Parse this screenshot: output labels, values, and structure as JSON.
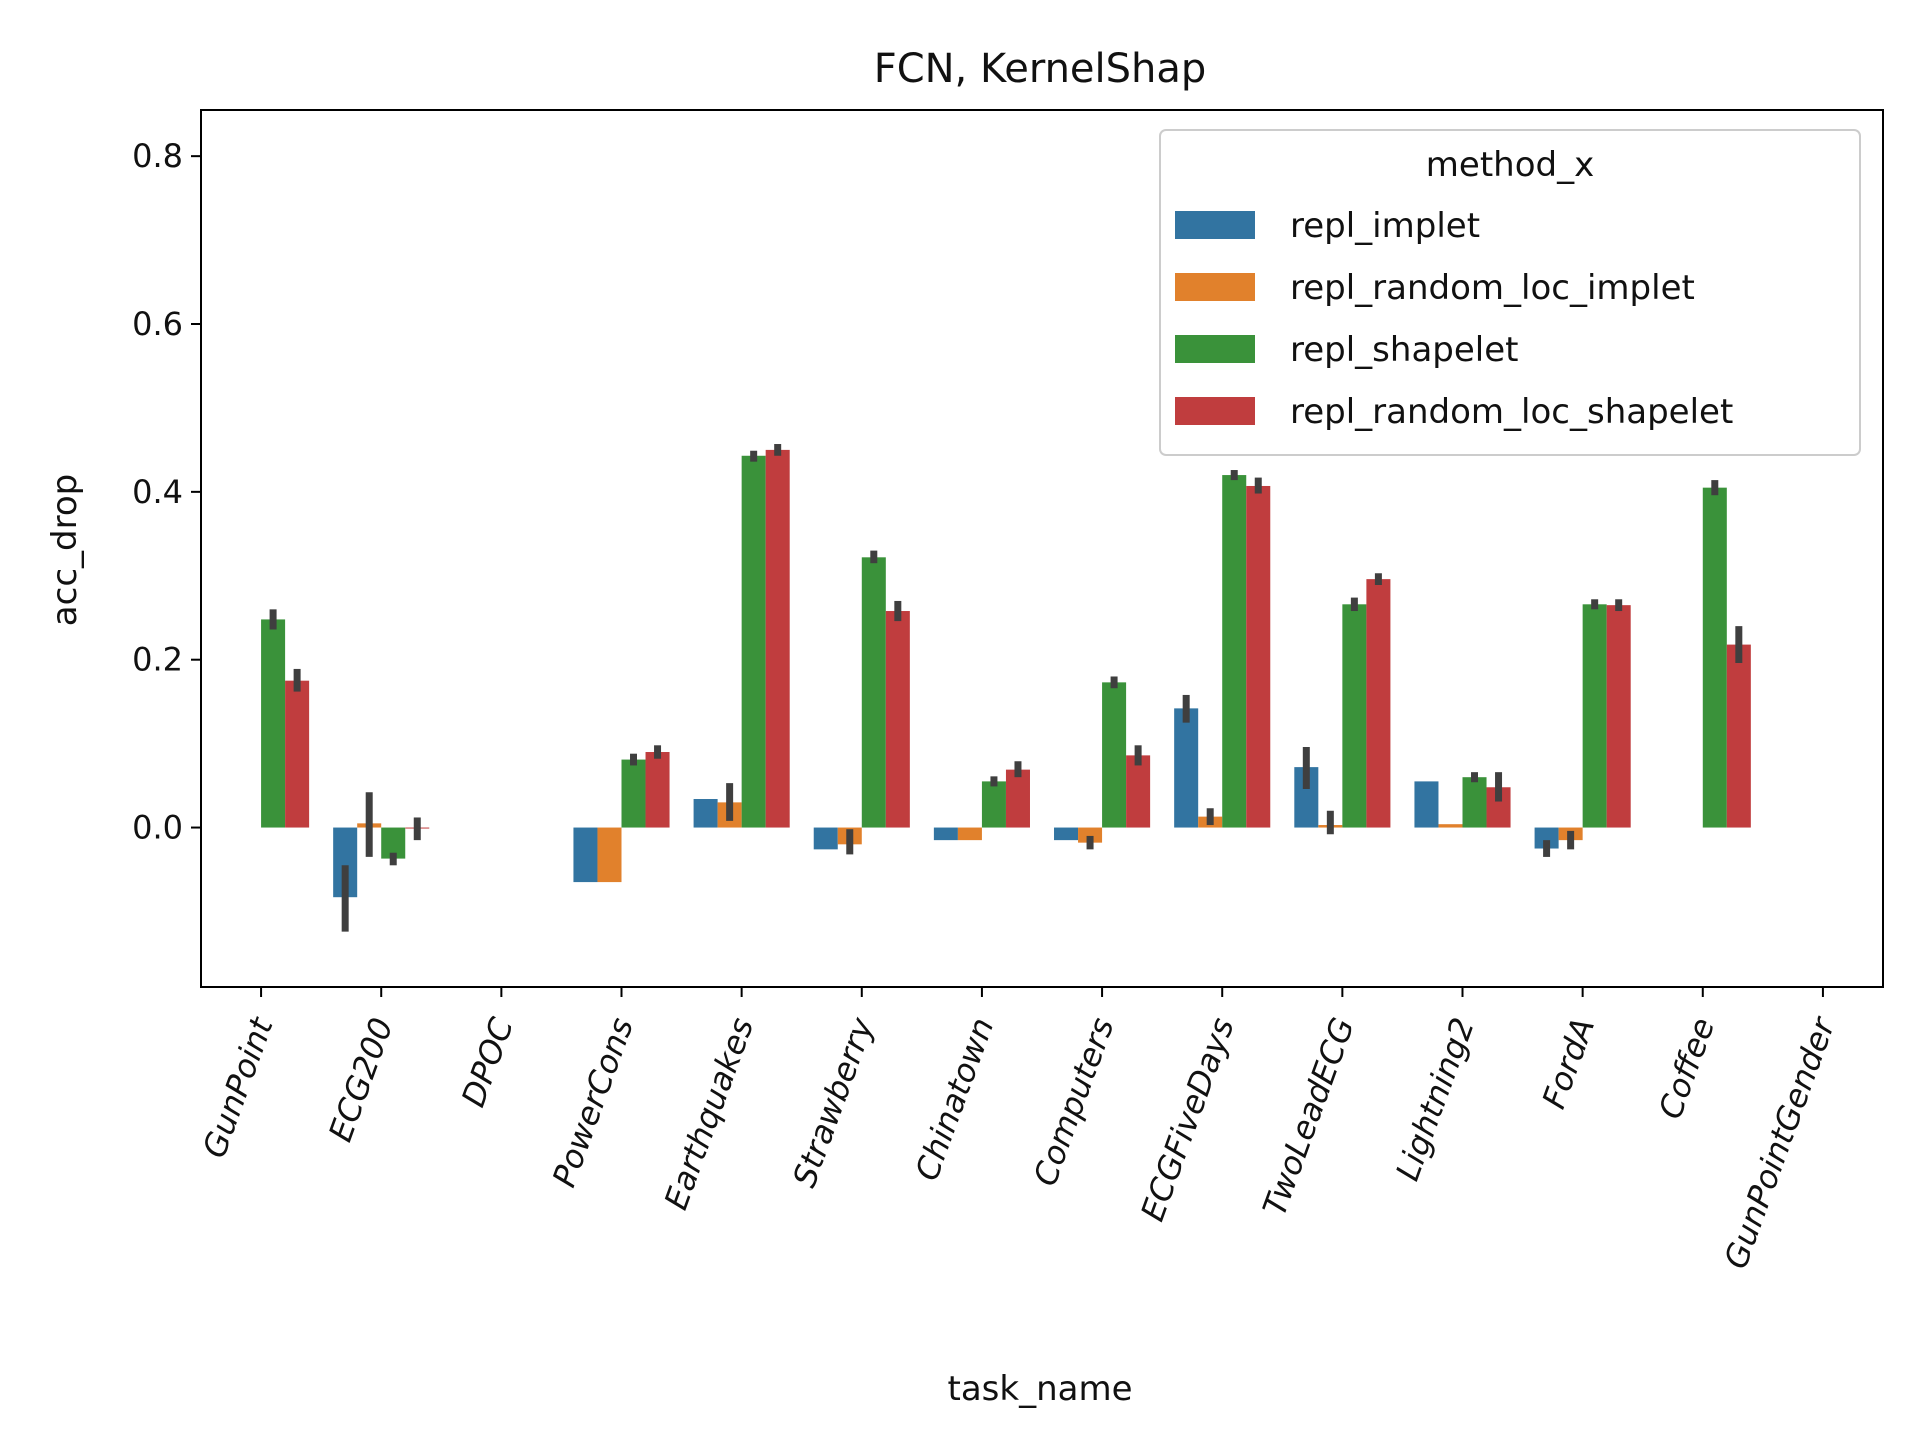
{
  "chart_data": {
    "type": "bar",
    "title": "FCN, KernelShap",
    "xlabel": "task_name",
    "ylabel": "acc_drop",
    "ylim": [
      -0.19,
      0.855
    ],
    "yticks": [
      0.0,
      0.2,
      0.4,
      0.6,
      0.8
    ],
    "ytick_labels": [
      "0.0",
      "0.2",
      "0.4",
      "0.6",
      "0.8"
    ],
    "grid": false,
    "legend": {
      "title": "method_x",
      "position": "top-right"
    },
    "categories": [
      "GunPoint",
      "ECG200",
      "DPOC",
      "PowerCons",
      "Earthquakes",
      "Strawberry",
      "Chinatown",
      "Computers",
      "ECGFiveDays",
      "TwoLeadECG",
      "Lightning2",
      "FordA",
      "Coffee",
      "GunPointGender"
    ],
    "series": [
      {
        "name": "repl_implet",
        "color": "#3274a1",
        "values": [
          null,
          -0.083,
          null,
          -0.065,
          0.034,
          -0.026,
          -0.015,
          -0.015,
          0.142,
          0.072,
          0.055,
          -0.025,
          null,
          null
        ],
        "errors": [
          null,
          [
            -0.124,
            -0.045
          ],
          null,
          null,
          [
            0.034,
            0.034
          ],
          null,
          null,
          null,
          [
            0.125,
            0.158
          ],
          [
            0.046,
            0.096
          ],
          null,
          [
            -0.035,
            -0.015
          ],
          null,
          null
        ]
      },
      {
        "name": "repl_random_loc_implet",
        "color": "#e1812c",
        "values": [
          null,
          0.005,
          null,
          -0.065,
          0.03,
          -0.02,
          -0.015,
          -0.018,
          0.013,
          0.003,
          0.004,
          -0.015,
          null,
          null
        ],
        "errors": [
          null,
          [
            -0.035,
            0.042
          ],
          null,
          null,
          [
            0.008,
            0.053
          ],
          [
            -0.032,
            -0.002
          ],
          null,
          [
            -0.026,
            -0.01
          ],
          [
            0.003,
            0.023
          ],
          [
            -0.008,
            0.02
          ],
          null,
          [
            -0.026,
            -0.004
          ],
          null,
          null
        ]
      },
      {
        "name": "repl_shapelet",
        "color": "#3a923a",
        "values": [
          0.248,
          -0.037,
          null,
          0.081,
          0.443,
          0.322,
          0.055,
          0.173,
          0.42,
          0.266,
          0.06,
          0.266,
          0.405,
          null
        ],
        "errors": [
          [
            0.236,
            0.26
          ],
          [
            -0.045,
            -0.03
          ],
          null,
          [
            0.074,
            0.088
          ],
          [
            0.436,
            0.449
          ],
          [
            0.315,
            0.33
          ],
          [
            0.049,
            0.061
          ],
          [
            0.166,
            0.18
          ],
          [
            0.414,
            0.426
          ],
          [
            0.258,
            0.274
          ],
          [
            0.054,
            0.066
          ],
          [
            0.26,
            0.272
          ],
          [
            0.396,
            0.414
          ],
          null
        ]
      },
      {
        "name": "repl_random_loc_shapelet",
        "color": "#c03d3e",
        "values": [
          0.175,
          -0.001,
          null,
          0.09,
          0.45,
          0.258,
          0.069,
          0.086,
          0.407,
          0.296,
          0.048,
          0.265,
          0.218,
          null
        ],
        "errors": [
          [
            0.162,
            0.189
          ],
          [
            -0.015,
            0.012
          ],
          null,
          [
            0.082,
            0.098
          ],
          [
            0.443,
            0.457
          ],
          [
            0.246,
            0.27
          ],
          [
            0.06,
            0.079
          ],
          [
            0.074,
            0.098
          ],
          [
            0.398,
            0.417
          ],
          [
            0.289,
            0.303
          ],
          [
            0.031,
            0.066
          ],
          [
            0.258,
            0.272
          ],
          [
            0.196,
            0.24
          ],
          null
        ]
      }
    ]
  }
}
